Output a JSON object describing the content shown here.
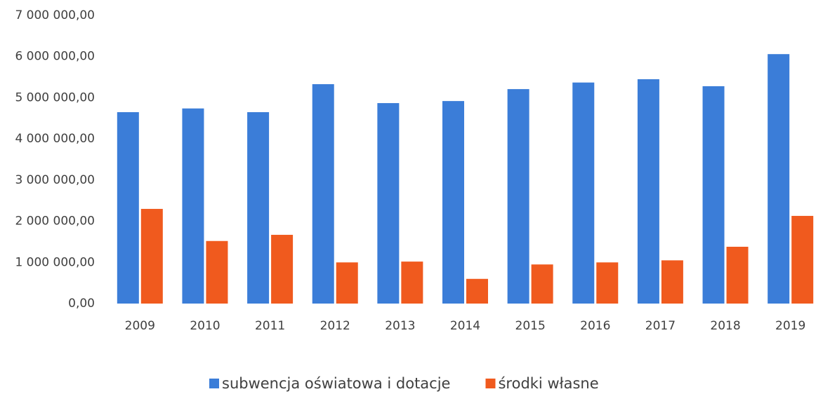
{
  "chart_data": {
    "type": "bar",
    "categories": [
      "2009",
      "2010",
      "2011",
      "2012",
      "2013",
      "2014",
      "2015",
      "2016",
      "2017",
      "2018",
      "2019"
    ],
    "series": [
      {
        "name": "subwencja oświatowa i dotacje",
        "color": "#3b7dd8",
        "values": [
          4650000,
          4740000,
          4650000,
          5330000,
          4870000,
          4920000,
          5210000,
          5370000,
          5450000,
          5280000,
          6060000
        ]
      },
      {
        "name": "środki własne",
        "color": "#f05a1e",
        "values": [
          2300000,
          1520000,
          1670000,
          1000000,
          1020000,
          600000,
          950000,
          1000000,
          1050000,
          1380000,
          2130000
        ]
      }
    ],
    "ylim": [
      0,
      7000000
    ],
    "yticks": [
      {
        "value": 0,
        "label": "0,00"
      },
      {
        "value": 1000000,
        "label": "1 000 000,00"
      },
      {
        "value": 2000000,
        "label": "2 000 000,00"
      },
      {
        "value": 3000000,
        "label": "3 000 000,00"
      },
      {
        "value": 4000000,
        "label": "4 000 000,00"
      },
      {
        "value": 5000000,
        "label": "5 000 000,00"
      },
      {
        "value": 6000000,
        "label": "6 000 000,00"
      },
      {
        "value": 7000000,
        "label": "7 000 000,00"
      }
    ],
    "grid": false,
    "legend": "bottom"
  }
}
